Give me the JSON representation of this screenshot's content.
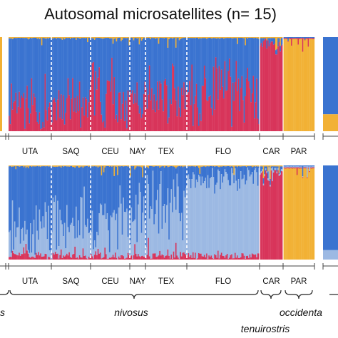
{
  "title": "Autosomal microsatellites (n= 15)",
  "colors": {
    "blue": "#3a73d0",
    "red": "#d8345a",
    "orange": "#f2b135",
    "light_blue": "#9cb9e3",
    "separator": "#ffffff",
    "axis": "#444444"
  },
  "chart_data": {
    "type": "bar",
    "subtype": "stacked-100-percent (STRUCTURE admixture plot)",
    "title": "Autosomal microsatellites (n= 15)",
    "populations": [
      "UTA",
      "SAQ",
      "CEU",
      "NAY",
      "TEX",
      "FLO",
      "CAR",
      "PAR"
    ],
    "taxa": [
      {
        "name": "nivosus",
        "populations": [
          "UTA",
          "SAQ",
          "CEU",
          "NAY",
          "TEX",
          "FLO"
        ]
      },
      {
        "name": "tenuirostris",
        "populations": [
          "CAR"
        ]
      },
      {
        "name": "occidentalis",
        "populations": [
          "PAR"
        ],
        "display_text": "occidenta"
      },
      {
        "name": "",
        "populations": [],
        "display_text": "s",
        "note": "cut off at left edge"
      }
    ],
    "panels": [
      {
        "clusters": [
          "blue",
          "red",
          "orange"
        ],
        "groups": [
          {
            "label": "UTA",
            "mean": {
              "blue": 0.7,
              "red": 0.29,
              "orange": 0.01
            }
          },
          {
            "label": "SAQ",
            "mean": {
              "blue": 0.69,
              "red": 0.3,
              "orange": 0.01
            }
          },
          {
            "label": "CEU",
            "mean": {
              "blue": 0.58,
              "red": 0.41,
              "orange": 0.01
            }
          },
          {
            "label": "NAY",
            "mean": {
              "blue": 0.64,
              "red": 0.35,
              "orange": 0.01
            }
          },
          {
            "label": "TEX",
            "mean": {
              "blue": 0.57,
              "red": 0.42,
              "orange": 0.01
            }
          },
          {
            "label": "FLO",
            "mean": {
              "blue": 0.58,
              "red": 0.41,
              "orange": 0.01
            }
          },
          {
            "label": "CAR",
            "mean": {
              "blue": 0.05,
              "red": 0.94,
              "orange": 0.01
            }
          },
          {
            "label": "PAR",
            "mean": {
              "blue": 0.01,
              "red": 0.01,
              "orange": 0.98
            }
          }
        ]
      },
      {
        "clusters": [
          "blue",
          "light_blue",
          "red",
          "orange"
        ],
        "groups": [
          {
            "label": "UTA",
            "mean": {
              "blue": 0.68,
              "light_blue": 0.27,
              "red": 0.04,
              "orange": 0.01
            }
          },
          {
            "label": "SAQ",
            "mean": {
              "blue": 0.6,
              "light_blue": 0.36,
              "red": 0.03,
              "orange": 0.01
            }
          },
          {
            "label": "CEU",
            "mean": {
              "blue": 0.55,
              "light_blue": 0.4,
              "red": 0.04,
              "orange": 0.01
            }
          },
          {
            "label": "NAY",
            "mean": {
              "blue": 0.55,
              "light_blue": 0.4,
              "red": 0.04,
              "orange": 0.01
            }
          },
          {
            "label": "TEX",
            "mean": {
              "blue": 0.45,
              "light_blue": 0.5,
              "red": 0.04,
              "orange": 0.01
            }
          },
          {
            "label": "FLO",
            "mean": {
              "blue": 0.12,
              "light_blue": 0.83,
              "red": 0.04,
              "orange": 0.01
            }
          },
          {
            "label": "CAR",
            "mean": {
              "blue": 0.04,
              "light_blue": 0.02,
              "red": 0.93,
              "orange": 0.01
            }
          },
          {
            "label": "PAR",
            "mean": {
              "blue": 0.01,
              "light_blue": 0.01,
              "red": 0.01,
              "orange": 0.97
            }
          }
        ]
      }
    ]
  }
}
